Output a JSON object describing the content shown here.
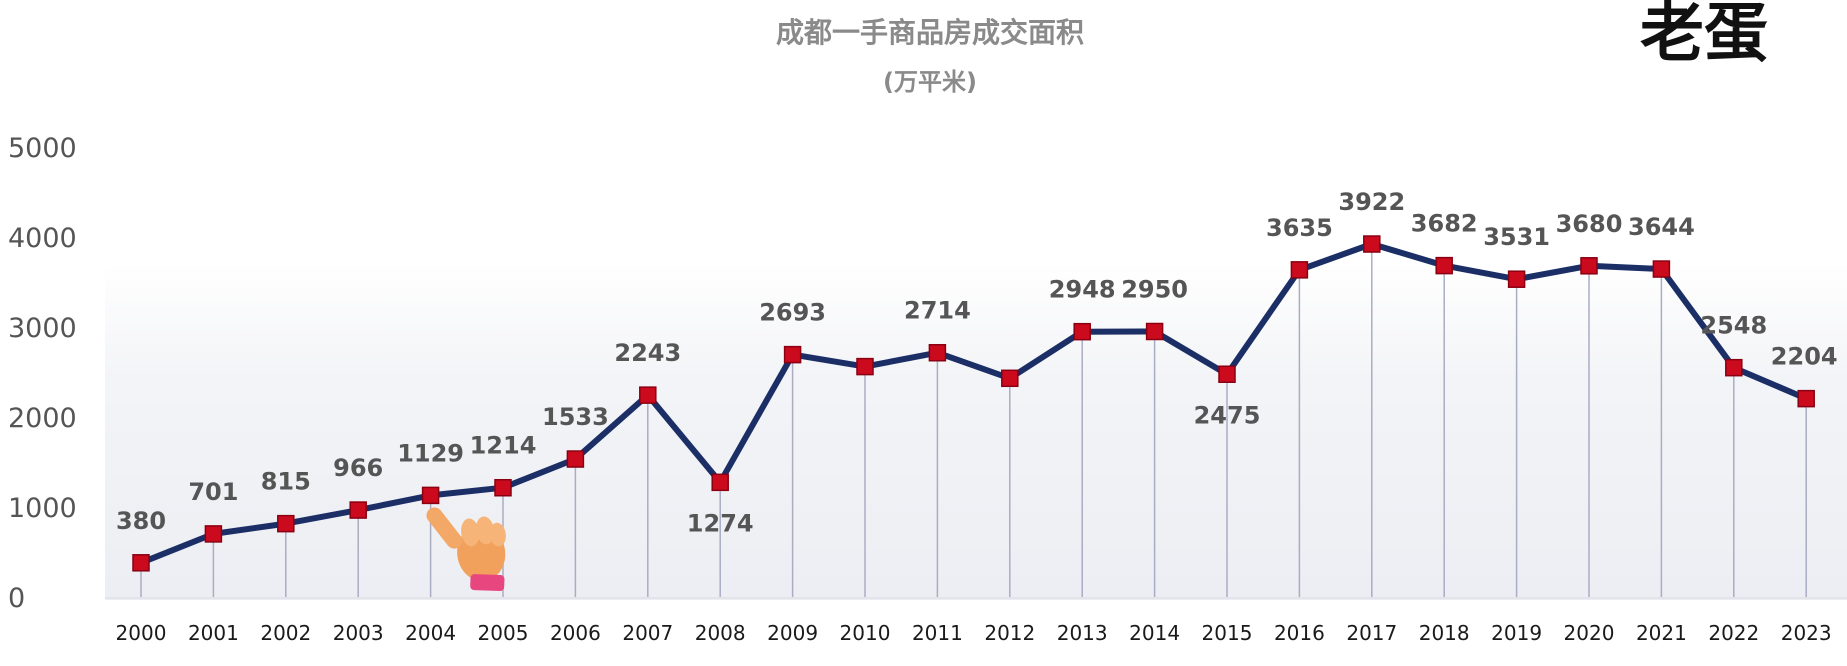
{
  "chart_data": {
    "type": "line",
    "title": "成都一手商品房成交面积",
    "subtitle": "(万平米)",
    "categories": [
      "2000",
      "2001",
      "2002",
      "2003",
      "2004",
      "2005",
      "2006",
      "2007",
      "2008",
      "2009",
      "2010",
      "2011",
      "2012",
      "2013",
      "2014",
      "2015",
      "2016",
      "2017",
      "2018",
      "2019",
      "2020",
      "2021",
      "2022",
      "2023"
    ],
    "values": [
      380,
      701,
      815,
      966,
      1129,
      1214,
      1533,
      2243,
      1274,
      2693,
      2560,
      2714,
      2430,
      2948,
      2950,
      2475,
      3635,
      3922,
      3682,
      3531,
      3680,
      3644,
      2548,
      2204
    ],
    "data_labels": [
      "380",
      "701",
      "815",
      "966",
      "1129",
      "1214",
      "1533",
      "2243",
      "1274",
      "2693",
      "",
      "2714",
      "",
      "2948",
      "2950",
      "2475",
      "3635",
      "3922",
      "3682",
      "3531",
      "3680",
      "3644",
      "2548",
      "2204"
    ],
    "yticks": [
      0,
      1000,
      2000,
      3000,
      4000,
      5000
    ],
    "ylim": [
      0,
      5000
    ],
    "grid": false,
    "legend": "none",
    "colors": {
      "line": "#1b2e66",
      "marker": "#cc0a1e",
      "marker_edge": "#8a0012",
      "drop_line": "#a9adc4",
      "band": "#eef0f4"
    }
  },
  "watermark": {
    "text": "老蛋"
  }
}
